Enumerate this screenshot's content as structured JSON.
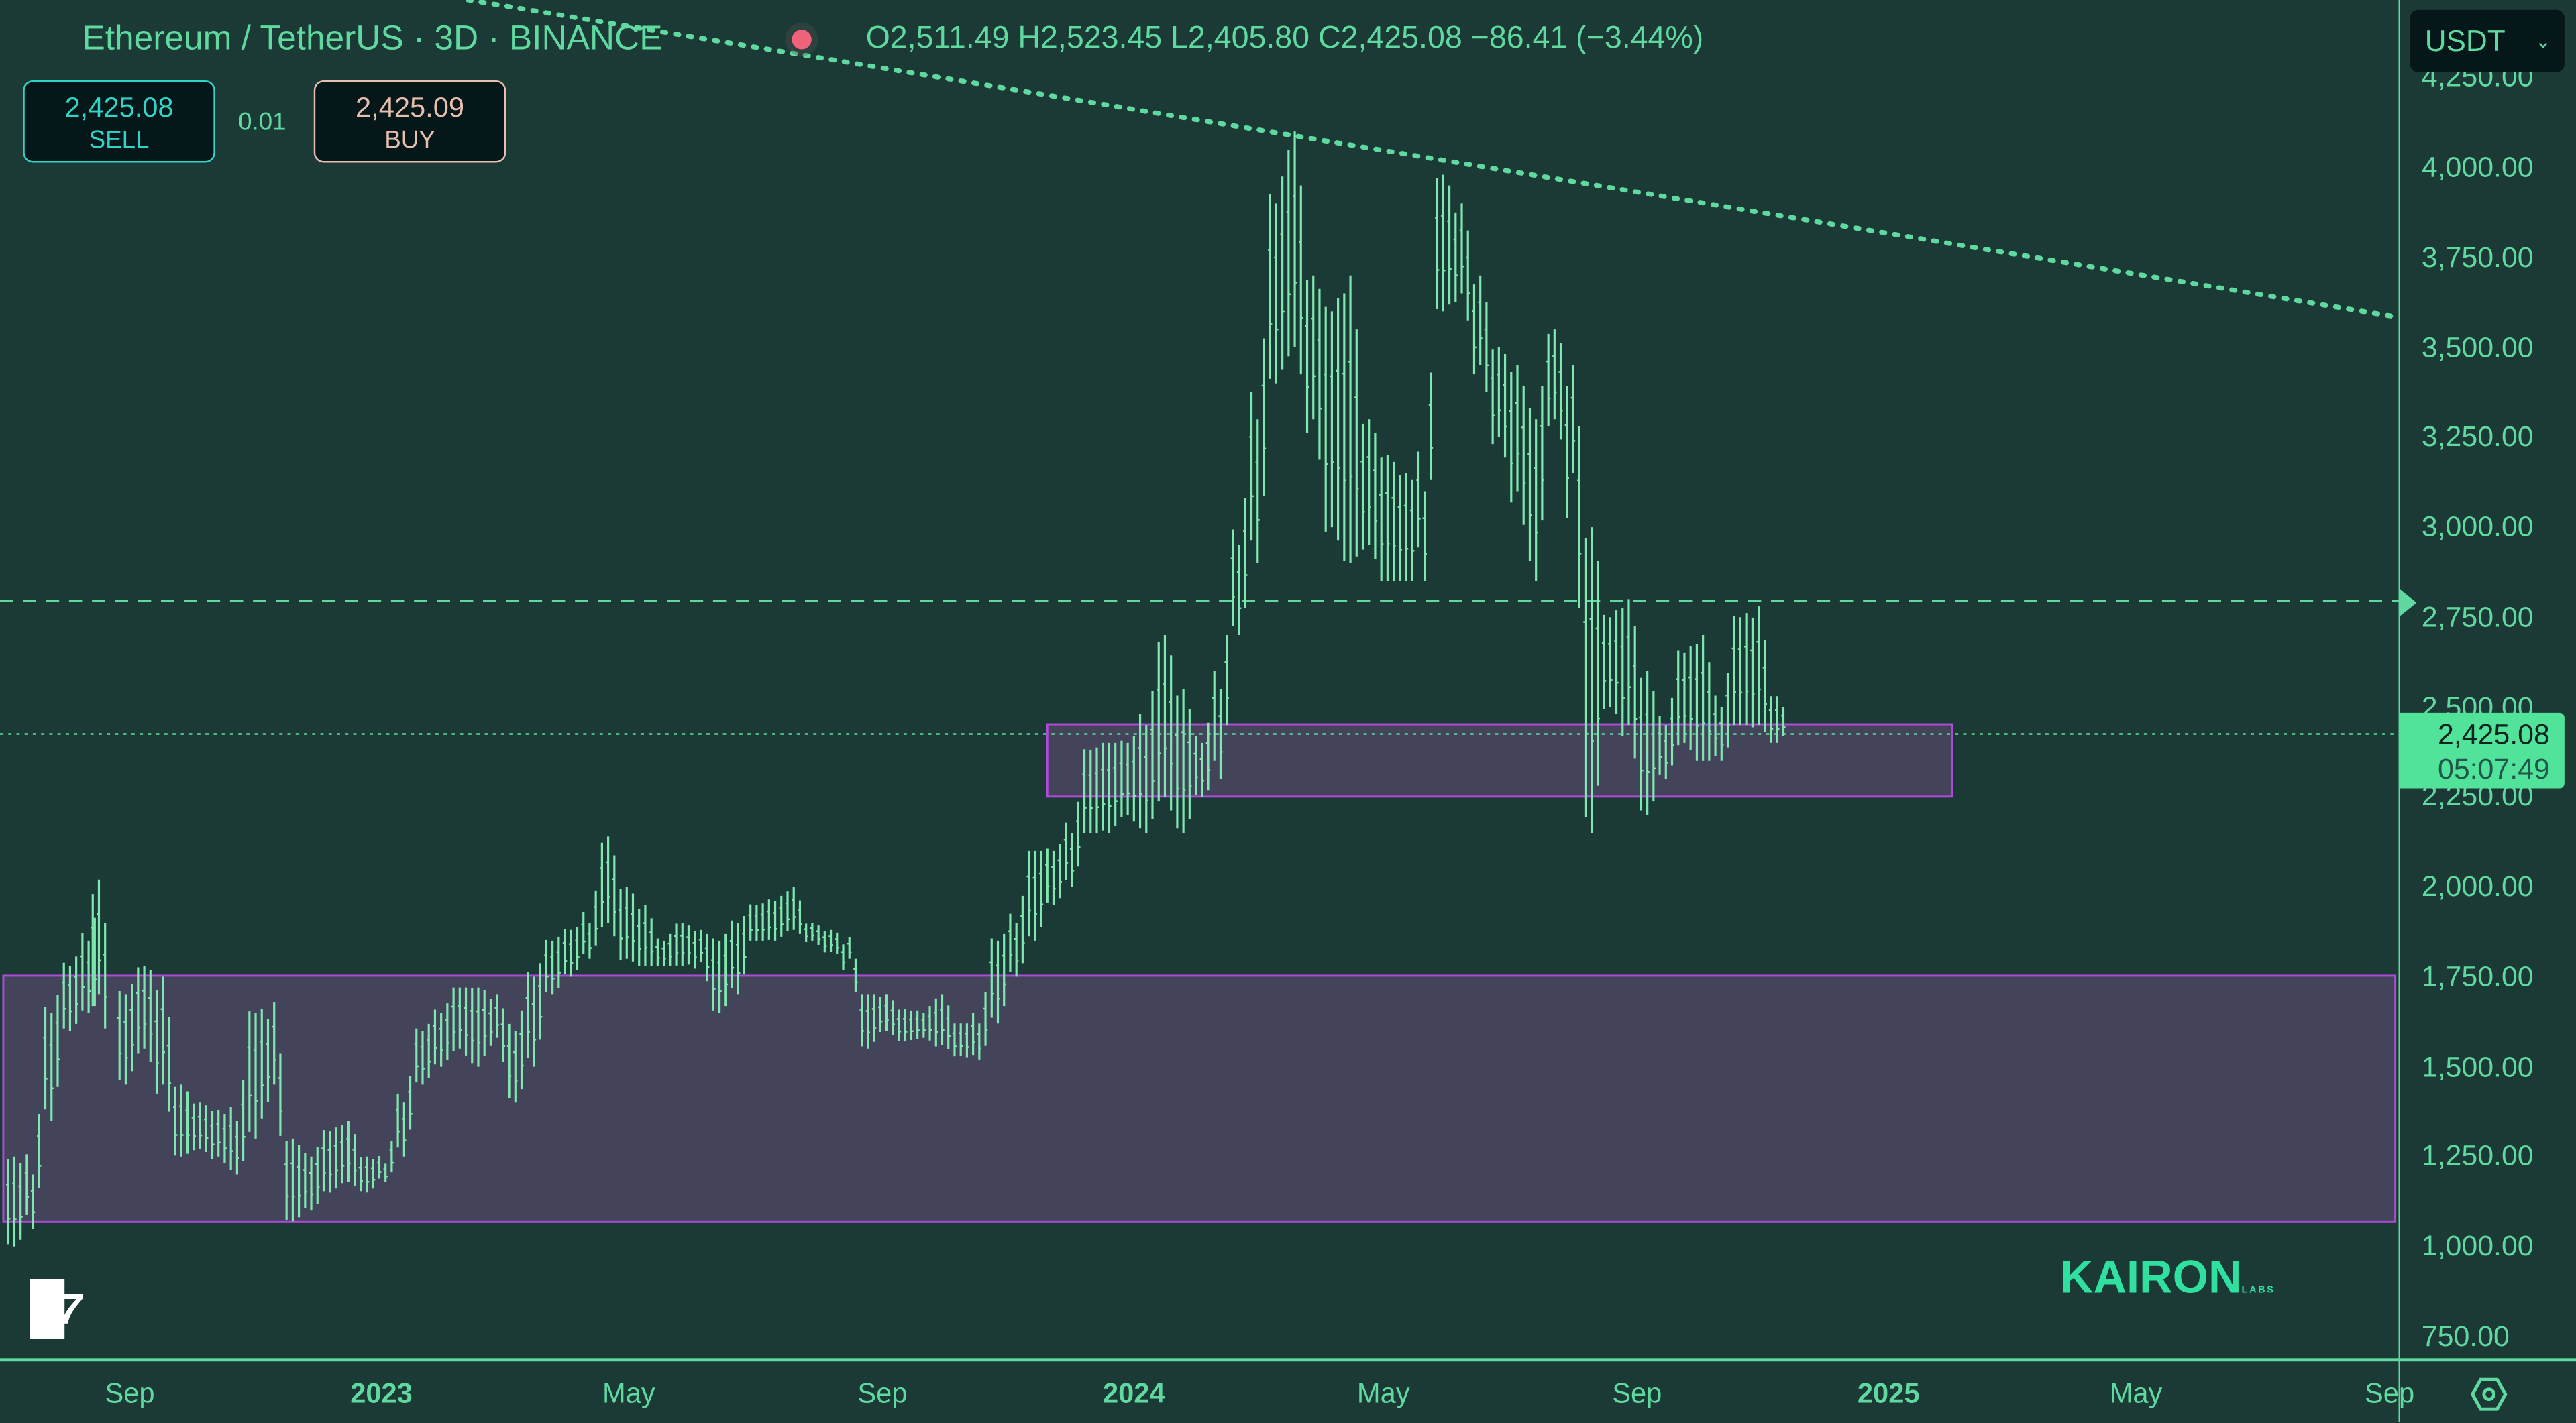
{
  "header": {
    "symbol": "Ethereum / TetherUS · 3D · BINANCE",
    "ohlc": "O2,511.49 H2,523.45 L2,405.80 C2,425.08 −86.41 (−3.44%)",
    "status_dot_color": "#f0627a"
  },
  "trade": {
    "sell_price": "2,425.08",
    "sell_label": "SELL",
    "spread": "0.01",
    "buy_price": "2,425.09",
    "buy_label": "BUY"
  },
  "currency_select": {
    "value": "USDT"
  },
  "price_label": {
    "price": "2,425.08",
    "countdown": "05:07:49"
  },
  "watermark": {
    "brand": "KAIRON",
    "sub": "LABS"
  },
  "logo": "17",
  "colors": {
    "background": "#1b3a35",
    "accent": "#5fd9a0",
    "zone_fill": "#4a4560",
    "zone_border": "#b04ad8",
    "price_label": "#52e39a"
  },
  "chart_data": {
    "type": "ohlc-bars",
    "interval": "3D",
    "y_ticks": [
      "750.00",
      "1,000.00",
      "1,250.00",
      "1,500.00",
      "1,750.00",
      "2,000.00",
      "2,250.00",
      "2,500.00",
      "2,750.00",
      "3,000.00",
      "3,250.00",
      "3,500.00",
      "3,750.00",
      "4,000.00",
      "4,250.00"
    ],
    "y_tick_values": [
      750,
      1000,
      1250,
      1500,
      1750,
      2000,
      2250,
      2500,
      2750,
      3000,
      3250,
      3500,
      3750,
      4000,
      4250
    ],
    "x_ticks": [
      {
        "label": "Sep",
        "date": "2022-09-01",
        "bold": false
      },
      {
        "label": "2023",
        "date": "2023-01-01",
        "bold": true
      },
      {
        "label": "May",
        "date": "2023-05-01",
        "bold": false
      },
      {
        "label": "Sep",
        "date": "2023-09-01",
        "bold": false
      },
      {
        "label": "2024",
        "date": "2024-01-01",
        "bold": true
      },
      {
        "label": "May",
        "date": "2024-05-01",
        "bold": false
      },
      {
        "label": "Sep",
        "date": "2024-09-01",
        "bold": false
      },
      {
        "label": "2025",
        "date": "2025-01-01",
        "bold": true
      },
      {
        "label": "May",
        "date": "2025-05-01",
        "bold": false
      },
      {
        "label": "Sep",
        "date": "2025-09-01",
        "bold": false
      }
    ],
    "last_price": 2425.08,
    "horizontal_line": 2795,
    "zones": [
      {
        "from": "2023-11-20",
        "to": "2025-02-01",
        "high": 2452,
        "low": 2251
      },
      {
        "from": "2022-07-01",
        "to": "2025-09-05",
        "high": 1753,
        "low": 1068
      }
    ],
    "trendline": [
      [
        "2023-02-12",
        4466
      ],
      [
        "2025-09-05",
        3584
      ]
    ],
    "bars": [
      [
        "2022-07-04",
        1250,
        1000
      ],
      [
        "2022-07-13",
        1200,
        1050
      ],
      [
        "2022-07-22",
        1650,
        1350
      ],
      [
        "2022-07-31",
        1780,
        1600
      ],
      [
        "2022-08-09",
        1850,
        1650
      ],
      [
        "2022-08-14",
        2020,
        1700
      ],
      [
        "2022-08-27",
        1700,
        1450
      ],
      [
        "2022-09-05",
        1780,
        1550
      ],
      [
        "2022-09-14",
        1750,
        1450
      ],
      [
        "2022-09-23",
        1450,
        1250
      ],
      [
        "2022-10-02",
        1400,
        1270
      ],
      [
        "2022-10-11",
        1380,
        1250
      ],
      [
        "2022-10-20",
        1350,
        1200
      ],
      [
        "2022-10-29",
        1650,
        1300
      ],
      [
        "2022-11-07",
        1680,
        1450
      ],
      [
        "2022-11-16",
        1300,
        1070
      ],
      [
        "2022-11-25",
        1250,
        1100
      ],
      [
        "2022-12-04",
        1320,
        1150
      ],
      [
        "2022-12-13",
        1350,
        1180
      ],
      [
        "2022-12-22",
        1250,
        1150
      ],
      [
        "2022-12-31",
        1230,
        1180
      ],
      [
        "2023-01-09",
        1400,
        1250
      ],
      [
        "2023-01-18",
        1600,
        1450
      ],
      [
        "2023-01-27",
        1650,
        1500
      ],
      [
        "2023-02-05",
        1720,
        1550
      ],
      [
        "2023-02-14",
        1720,
        1500
      ],
      [
        "2023-02-23",
        1700,
        1580
      ],
      [
        "2023-03-04",
        1600,
        1400
      ],
      [
        "2023-03-13",
        1750,
        1500
      ],
      [
        "2023-03-22",
        1850,
        1700
      ],
      [
        "2023-03-31",
        1880,
        1750
      ],
      [
        "2023-04-09",
        1900,
        1800
      ],
      [
        "2023-04-18",
        2140,
        1900
      ],
      [
        "2023-04-27",
        2000,
        1800
      ],
      [
        "2023-05-06",
        1950,
        1780
      ],
      [
        "2023-05-15",
        1850,
        1780
      ],
      [
        "2023-05-24",
        1900,
        1780
      ],
      [
        "2023-06-02",
        1880,
        1790
      ],
      [
        "2023-06-11",
        1850,
        1650
      ],
      [
        "2023-06-20",
        1900,
        1700
      ],
      [
        "2023-06-29",
        1950,
        1850
      ],
      [
        "2023-07-08",
        1960,
        1850
      ],
      [
        "2023-07-17",
        2000,
        1880
      ],
      [
        "2023-07-26",
        1900,
        1850
      ],
      [
        "2023-08-04",
        1880,
        1820
      ],
      [
        "2023-08-13",
        1860,
        1800
      ],
      [
        "2023-08-22",
        1700,
        1550
      ],
      [
        "2023-08-31",
        1700,
        1600
      ],
      [
        "2023-09-09",
        1660,
        1570
      ],
      [
        "2023-09-18",
        1650,
        1580
      ],
      [
        "2023-09-27",
        1700,
        1560
      ],
      [
        "2023-10-06",
        1620,
        1530
      ],
      [
        "2023-10-15",
        1620,
        1520
      ],
      [
        "2023-10-24",
        1850,
        1620
      ],
      [
        "2023-11-02",
        1900,
        1750
      ],
      [
        "2023-11-11",
        2100,
        1850
      ],
      [
        "2023-11-20",
        2100,
        1950
      ],
      [
        "2023-11-29",
        2150,
        2000
      ],
      [
        "2023-12-08",
        2380,
        2150
      ],
      [
        "2023-12-17",
        2400,
        2150
      ],
      [
        "2023-12-26",
        2400,
        2200
      ],
      [
        "2024-01-04",
        2450,
        2150
      ],
      [
        "2024-01-13",
        2700,
        2250
      ],
      [
        "2024-01-22",
        2550,
        2150
      ],
      [
        "2024-01-31",
        2400,
        2250
      ],
      [
        "2024-02-09",
        2550,
        2300
      ],
      [
        "2024-02-18",
        2950,
        2700
      ],
      [
        "2024-02-27",
        3300,
        2900
      ],
      [
        "2024-03-07",
        3900,
        3400
      ],
      [
        "2024-03-16",
        4100,
        3500
      ],
      [
        "2024-03-25",
        3700,
        3300
      ],
      [
        "2024-04-03",
        3600,
        3000
      ],
      [
        "2024-04-12",
        3700,
        2900
      ],
      [
        "2024-04-21",
        3300,
        2950
      ],
      [
        "2024-04-30",
        3200,
        2850
      ],
      [
        "2024-05-09",
        3150,
        2850
      ],
      [
        "2024-05-18",
        3100,
        2850
      ],
      [
        "2024-05-27",
        3980,
        3600
      ],
      [
        "2024-06-05",
        3900,
        3650
      ],
      [
        "2024-06-14",
        3700,
        3450
      ],
      [
        "2024-06-23",
        3500,
        3250
      ],
      [
        "2024-07-02",
        3450,
        3100
      ],
      [
        "2024-07-11",
        3300,
        2850
      ],
      [
        "2024-07-20",
        3550,
        3300
      ],
      [
        "2024-07-29",
        3450,
        3150
      ],
      [
        "2024-08-07",
        3000,
        2150
      ],
      [
        "2024-08-16",
        2750,
        2500
      ],
      [
        "2024-08-25",
        2800,
        2450
      ],
      [
        "2024-09-03",
        2600,
        2200
      ],
      [
        "2024-09-12",
        2450,
        2300
      ],
      [
        "2024-09-21",
        2650,
        2400
      ],
      [
        "2024-09-30",
        2700,
        2350
      ],
      [
        "2024-10-09",
        2500,
        2350
      ],
      [
        "2024-10-18",
        2750,
        2450
      ],
      [
        "2024-10-27",
        2780,
        2450
      ],
      [
        "2024-11-05",
        2530,
        2400
      ]
    ]
  }
}
